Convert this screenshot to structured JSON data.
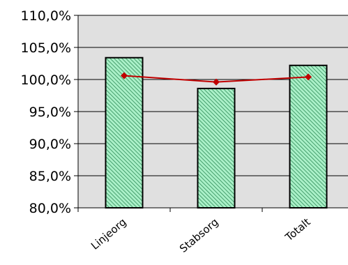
{
  "chart_data": {
    "type": "bar",
    "categories": [
      "Linjeorg",
      "Stabsorg",
      "Totalt"
    ],
    "series": [
      {
        "type": "bar",
        "values": [
          103.4,
          98.6,
          102.2
        ],
        "color": "#aaf0c8",
        "pattern_color": "#2e8b57"
      },
      {
        "type": "line",
        "values": [
          100.6,
          99.6,
          100.4
        ],
        "color": "#c00000"
      }
    ],
    "ylim": [
      80,
      110
    ],
    "yticks": [
      80,
      85,
      90,
      95,
      100,
      105,
      110
    ],
    "ytick_labels": [
      "80,0%",
      "85,0%",
      "90,0%",
      "95,0%",
      "100,0%",
      "105,0%",
      "110,0%"
    ],
    "grid": true,
    "plot_background": "#e0e0e0",
    "legend": "none"
  }
}
